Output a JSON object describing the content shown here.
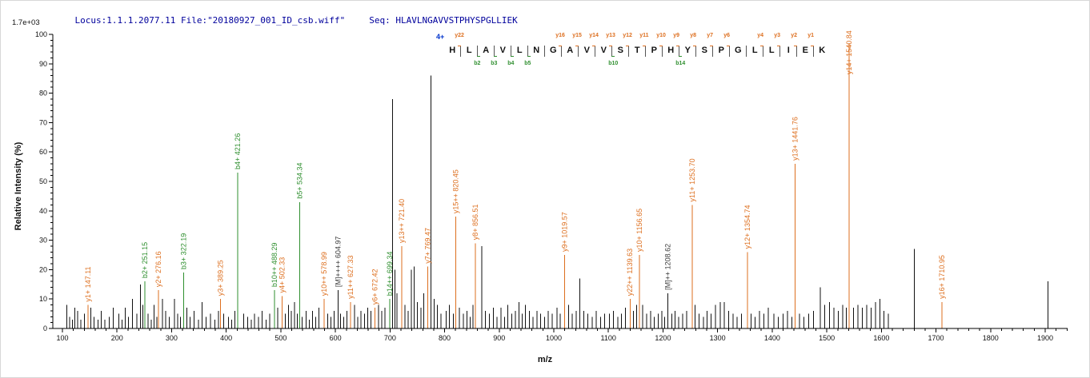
{
  "header": {
    "locus_file": "Locus:1.1.1.2077.11 File:\"20180927_001_ID_csb.wiff\"",
    "seq_label": "Seq: HLAVLNGAVVSTPHYSPGLLIEK"
  },
  "colors": {
    "header_text": "#00009c",
    "y_ion": "#dd6f1f",
    "b_ion": "#2f8f2f",
    "peak": "#111111",
    "m_ion": "#3c3c3c",
    "charge_label": "#0033cc"
  },
  "sequence_annotation": {
    "charge_label": "4+",
    "residues": [
      "H",
      "L",
      "A",
      "V",
      "L",
      "N",
      "G",
      "A",
      "V",
      "V",
      "S",
      "T",
      "P",
      "H",
      "Y",
      "S",
      "P",
      "G",
      "L",
      "L",
      "I",
      "E",
      "K"
    ],
    "y_ions": {
      "1": "y22",
      "7": "y16",
      "8": "y15",
      "9": "y14",
      "10": "y13",
      "11": "y12",
      "12": "y11",
      "13": "y10",
      "14": "y9",
      "15": "y8",
      "16": "y7",
      "17": "y6",
      "19": "y4",
      "20": "y3",
      "21": "y2",
      "22": "y1"
    },
    "b_ions": {
      "2": "b2",
      "3": "b3",
      "4": "b4",
      "5": "b5",
      "10": "b10",
      "14": "b14"
    }
  },
  "chart_data": {
    "type": "bar",
    "subtype": "ms2-centroid-spectrum",
    "title": "",
    "xlabel": "m/z",
    "ylabel": "Relative Intensity (%)",
    "y_axis_max_label": "1.7e+03",
    "xlim": [
      100,
      1940
    ],
    "ylim": [
      0,
      100
    ],
    "grid": false,
    "x_ticks": [
      100,
      200,
      300,
      400,
      500,
      600,
      700,
      800,
      900,
      1000,
      1100,
      1200,
      1300,
      1400,
      1500,
      1600,
      1700,
      1800,
      1900
    ],
    "y_ticks": [
      0,
      10,
      20,
      30,
      40,
      50,
      60,
      70,
      80,
      90,
      100
    ],
    "series": [
      {
        "name": "unassigned",
        "color_key": "peak",
        "peaks": [
          [
            108,
            8
          ],
          [
            113,
            4
          ],
          [
            118,
            3
          ],
          [
            123,
            7
          ],
          [
            128,
            6
          ],
          [
            134,
            3
          ],
          [
            140,
            5
          ],
          [
            152,
            7
          ],
          [
            158,
            4
          ],
          [
            165,
            3
          ],
          [
            171,
            6
          ],
          [
            178,
            3
          ],
          [
            186,
            4
          ],
          [
            193,
            7
          ],
          [
            203,
            5
          ],
          [
            209,
            3
          ],
          [
            215,
            7
          ],
          [
            221,
            4
          ],
          [
            228,
            10
          ],
          [
            236,
            5
          ],
          [
            243,
            15
          ],
          [
            247,
            8
          ],
          [
            257,
            5
          ],
          [
            263,
            3
          ],
          [
            268,
            8
          ],
          [
            273,
            4
          ],
          [
            283,
            10
          ],
          [
            289,
            6
          ],
          [
            296,
            4
          ],
          [
            305,
            10
          ],
          [
            311,
            5
          ],
          [
            316,
            4
          ],
          [
            328,
            7
          ],
          [
            334,
            4
          ],
          [
            341,
            6
          ],
          [
            349,
            3
          ],
          [
            356,
            9
          ],
          [
            363,
            4
          ],
          [
            371,
            5
          ],
          [
            379,
            3
          ],
          [
            386,
            6
          ],
          [
            395,
            5
          ],
          [
            404,
            4
          ],
          [
            410,
            3
          ],
          [
            416,
            6
          ],
          [
            432,
            5
          ],
          [
            439,
            4
          ],
          [
            446,
            3
          ],
          [
            452,
            5
          ],
          [
            459,
            4
          ],
          [
            466,
            6
          ],
          [
            473,
            3
          ],
          [
            480,
            5
          ],
          [
            494,
            7
          ],
          [
            508,
            5
          ],
          [
            514,
            8
          ],
          [
            519,
            6
          ],
          [
            525,
            9
          ],
          [
            530,
            5
          ],
          [
            539,
            4
          ],
          [
            546,
            6
          ],
          [
            552,
            3
          ],
          [
            558,
            6
          ],
          [
            564,
            4
          ],
          [
            570,
            7
          ],
          [
            586,
            5
          ],
          [
            592,
            4
          ],
          [
            598,
            6
          ],
          [
            609,
            5
          ],
          [
            615,
            4
          ],
          [
            621,
            6
          ],
          [
            635,
            8
          ],
          [
            641,
            4
          ],
          [
            647,
            6
          ],
          [
            653,
            5
          ],
          [
            659,
            7
          ],
          [
            665,
            6
          ],
          [
            679,
            8
          ],
          [
            685,
            6
          ],
          [
            691,
            7
          ],
          [
            705,
            78
          ],
          [
            709,
            20
          ],
          [
            713,
            12
          ],
          [
            727,
            8
          ],
          [
            733,
            6
          ],
          [
            739,
            20
          ],
          [
            744,
            21
          ],
          [
            750,
            9
          ],
          [
            757,
            7
          ],
          [
            762,
            12
          ],
          [
            775,
            86
          ],
          [
            781,
            10
          ],
          [
            787,
            8
          ],
          [
            793,
            5
          ],
          [
            803,
            6
          ],
          [
            809,
            8
          ],
          [
            816,
            5
          ],
          [
            827,
            7
          ],
          [
            834,
            5
          ],
          [
            841,
            6
          ],
          [
            847,
            4
          ],
          [
            852,
            8
          ],
          [
            868,
            28
          ],
          [
            875,
            6
          ],
          [
            882,
            5
          ],
          [
            889,
            7
          ],
          [
            896,
            4
          ],
          [
            903,
            7
          ],
          [
            910,
            4
          ],
          [
            916,
            8
          ],
          [
            923,
            5
          ],
          [
            930,
            6
          ],
          [
            936,
            9
          ],
          [
            942,
            5
          ],
          [
            948,
            8
          ],
          [
            955,
            6
          ],
          [
            962,
            4
          ],
          [
            969,
            6
          ],
          [
            976,
            5
          ],
          [
            983,
            4
          ],
          [
            990,
            6
          ],
          [
            997,
            5
          ],
          [
            1006,
            7
          ],
          [
            1012,
            5
          ],
          [
            1027,
            8
          ],
          [
            1034,
            5
          ],
          [
            1041,
            6
          ],
          [
            1048,
            17
          ],
          [
            1055,
            6
          ],
          [
            1062,
            5
          ],
          [
            1070,
            4
          ],
          [
            1078,
            6
          ],
          [
            1086,
            4
          ],
          [
            1093,
            5
          ],
          [
            1102,
            5
          ],
          [
            1109,
            6
          ],
          [
            1117,
            4
          ],
          [
            1124,
            5
          ],
          [
            1131,
            7
          ],
          [
            1146,
            6
          ],
          [
            1152,
            8
          ],
          [
            1163,
            8
          ],
          [
            1170,
            5
          ],
          [
            1177,
            6
          ],
          [
            1184,
            4
          ],
          [
            1191,
            5
          ],
          [
            1198,
            6
          ],
          [
            1203,
            4
          ],
          [
            1216,
            5
          ],
          [
            1222,
            6
          ],
          [
            1229,
            4
          ],
          [
            1236,
            5
          ],
          [
            1243,
            6
          ],
          [
            1259,
            8
          ],
          [
            1266,
            5
          ],
          [
            1274,
            4
          ],
          [
            1281,
            6
          ],
          [
            1288,
            5
          ],
          [
            1296,
            8
          ],
          [
            1305,
            9
          ],
          [
            1312,
            9
          ],
          [
            1320,
            6
          ],
          [
            1328,
            5
          ],
          [
            1336,
            4
          ],
          [
            1344,
            5
          ],
          [
            1361,
            5
          ],
          [
            1369,
            4
          ],
          [
            1377,
            6
          ],
          [
            1385,
            5
          ],
          [
            1393,
            7
          ],
          [
            1403,
            5
          ],
          [
            1411,
            4
          ],
          [
            1420,
            5
          ],
          [
            1428,
            6
          ],
          [
            1436,
            4
          ],
          [
            1450,
            5
          ],
          [
            1458,
            4
          ],
          [
            1467,
            5
          ],
          [
            1476,
            6
          ],
          [
            1488,
            14
          ],
          [
            1496,
            8
          ],
          [
            1505,
            9
          ],
          [
            1513,
            7
          ],
          [
            1521,
            6
          ],
          [
            1529,
            8
          ],
          [
            1536,
            7
          ],
          [
            1549,
            7
          ],
          [
            1557,
            8
          ],
          [
            1565,
            7
          ],
          [
            1573,
            8
          ],
          [
            1581,
            7
          ],
          [
            1589,
            9
          ],
          [
            1597,
            10
          ],
          [
            1605,
            6
          ],
          [
            1613,
            5
          ],
          [
            1660,
            27
          ],
          [
            1905,
            16
          ]
        ]
      },
      {
        "name": "b-ions",
        "color_key": "b_ion",
        "peaks": [
          {
            "label": "b2+ 251.15",
            "mz": 251.15,
            "intensity": 16
          },
          {
            "label": "b3+ 322.19",
            "mz": 322.19,
            "intensity": 19
          },
          {
            "label": "b4+ 421.26",
            "mz": 421.26,
            "intensity": 53
          },
          {
            "label": "b10++ 488.29",
            "mz": 488.29,
            "intensity": 13
          },
          {
            "label": "b5+ 534.34",
            "mz": 534.34,
            "intensity": 43
          },
          {
            "label": "b14++ 699.34",
            "mz": 699.34,
            "intensity": 10
          }
        ]
      },
      {
        "name": "precursor",
        "color_key": "peak",
        "label_color_key": "m_ion",
        "peaks": [
          {
            "label": "[M]++++ 604.97",
            "mz": 604.97,
            "intensity": 13
          },
          {
            "label": "[M]++ 1208.62",
            "mz": 1208.62,
            "intensity": 12
          }
        ]
      },
      {
        "name": "y-ions",
        "color_key": "y_ion",
        "peaks": [
          {
            "label": "y1+ 147.11",
            "mz": 147.11,
            "intensity": 8
          },
          {
            "label": "y2+ 276.16",
            "mz": 276.16,
            "intensity": 13
          },
          {
            "label": "y3+ 389.25",
            "mz": 389.25,
            "intensity": 10
          },
          {
            "label": "y4+ 502.33",
            "mz": 502.33,
            "intensity": 11
          },
          {
            "label": "y10++ 578.99",
            "mz": 578.99,
            "intensity": 10
          },
          {
            "label": "y11++ 627.33",
            "mz": 627.33,
            "intensity": 9
          },
          {
            "label": "y6+ 672.42",
            "mz": 672.42,
            "intensity": 7
          },
          {
            "label": "y13++ 721.40",
            "mz": 721.4,
            "intensity": 28
          },
          {
            "label": "y7+ 769.47",
            "mz": 769.47,
            "intensity": 21
          },
          {
            "label": "y15++ 820.45",
            "mz": 820.45,
            "intensity": 38
          },
          {
            "label": "y8+ 856.51",
            "mz": 856.51,
            "intensity": 29
          },
          {
            "label": "y9+ 1019.57",
            "mz": 1019.57,
            "intensity": 25
          },
          {
            "label": "y22++ 1139.63",
            "mz": 1139.63,
            "intensity": 10
          },
          {
            "label": "y10+ 1156.65",
            "mz": 1156.65,
            "intensity": 25
          },
          {
            "label": "y11+ 1253.70",
            "mz": 1253.7,
            "intensity": 42
          },
          {
            "label": "y12+ 1354.74",
            "mz": 1354.74,
            "intensity": 26
          },
          {
            "label": "y13+ 1441.76",
            "mz": 1441.76,
            "intensity": 56
          },
          {
            "label": "y14+ 1540.84",
            "mz": 1540.84,
            "intensity": 97
          },
          {
            "label": "y16+ 1710.95",
            "mz": 1710.95,
            "intensity": 9
          }
        ]
      }
    ]
  }
}
